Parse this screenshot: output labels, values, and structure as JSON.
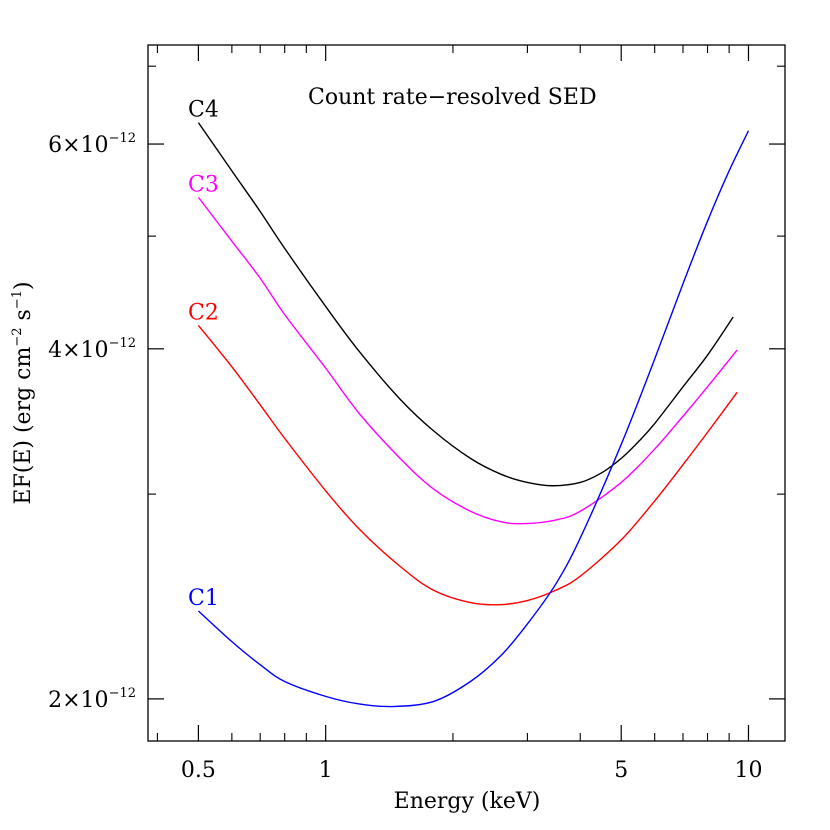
{
  "chart_data": {
    "type": "line",
    "title": "Count rate−resolved SED",
    "xlabel": "Energy (keV)",
    "ylabel": {
      "parts": [
        "EF(E) (erg cm",
        "−2",
        " s",
        "−1",
        ")"
      ]
    },
    "x_scale": "log",
    "y_scale": "log",
    "xlim": [
      0.38,
      12.2
    ],
    "ylim": [
      1.84e-12,
      7.3e-12
    ],
    "x_ticks": {
      "major": [
        {
          "value": 0.5,
          "label": "0.5"
        },
        {
          "value": 1,
          "label": "1"
        },
        {
          "value": 5,
          "label": "5"
        },
        {
          "value": 10,
          "label": "10"
        }
      ],
      "minor": [
        0.4,
        0.6,
        0.7,
        0.8,
        0.9,
        2,
        3,
        4,
        6,
        7,
        8,
        9
      ]
    },
    "y_ticks": {
      "major": [
        {
          "value": 2e-12,
          "mantissa": "2×10",
          "exponent": "−12"
        },
        {
          "value": 4e-12,
          "mantissa": "4×10",
          "exponent": "−12"
        },
        {
          "value": 6e-12,
          "mantissa": "6×10",
          "exponent": "−12"
        }
      ],
      "minor": [
        3e-12,
        5e-12,
        7e-12
      ]
    },
    "series": [
      {
        "name": "C4",
        "color": "#000000",
        "x": [
          0.5,
          0.6,
          0.7,
          0.8,
          1.0,
          1.2,
          1.5,
          1.8,
          2.2,
          2.6,
          3.0,
          3.44,
          4.0,
          4.5,
          5.0,
          5.5,
          6.0,
          7.0,
          8.0,
          9.2
        ],
        "y": [
          6.26e-12,
          5.69e-12,
          5.25e-12,
          4.88e-12,
          4.35e-12,
          3.98e-12,
          3.62e-12,
          3.4e-12,
          3.22e-12,
          3.12e-12,
          3.07e-12,
          3.05e-12,
          3.07e-12,
          3.13e-12,
          3.22e-12,
          3.33e-12,
          3.45e-12,
          3.71e-12,
          3.95e-12,
          4.26e-12
        ]
      },
      {
        "name": "C3",
        "color": "#ff00ff",
        "x": [
          0.5,
          0.6,
          0.7,
          0.8,
          1.0,
          1.2,
          1.5,
          1.8,
          2.2,
          2.6,
          2.97,
          3.5,
          4.0,
          5.0,
          6.0,
          7.0,
          8.0,
          9.4
        ],
        "y": [
          5.4e-12,
          4.95e-12,
          4.6e-12,
          4.28e-12,
          3.85e-12,
          3.52e-12,
          3.22e-12,
          3.03e-12,
          2.9e-12,
          2.84e-12,
          2.83e-12,
          2.85e-12,
          2.9e-12,
          3.07e-12,
          3.28e-12,
          3.5e-12,
          3.71e-12,
          3.99e-12
        ]
      },
      {
        "name": "C2",
        "color": "#ff0000",
        "x": [
          0.5,
          0.6,
          0.7,
          0.8,
          1.0,
          1.2,
          1.5,
          1.8,
          2.2,
          2.58,
          3.0,
          3.5,
          4.0,
          5.0,
          6.0,
          7.0,
          8.0,
          9.4
        ],
        "y": [
          4.19e-12,
          3.86e-12,
          3.58e-12,
          3.35e-12,
          3.02e-12,
          2.8e-12,
          2.6e-12,
          2.48e-12,
          2.42e-12,
          2.41e-12,
          2.43e-12,
          2.48e-12,
          2.55e-12,
          2.74e-12,
          2.96e-12,
          3.18e-12,
          3.39e-12,
          3.67e-12
        ]
      },
      {
        "name": "C1",
        "color": "#0000ff",
        "x": [
          0.5,
          0.6,
          0.7,
          0.8,
          1.0,
          1.2,
          1.44,
          1.8,
          2.2,
          2.6,
          3.0,
          3.5,
          4.0,
          5.0,
          6.0,
          7.0,
          8.0,
          9.0,
          10.0
        ],
        "y": [
          2.38e-12,
          2.24e-12,
          2.14e-12,
          2.07e-12,
          2.01e-12,
          1.98e-12,
          1.97e-12,
          1.99e-12,
          2.07e-12,
          2.18e-12,
          2.32e-12,
          2.51e-12,
          2.75e-12,
          3.31e-12,
          3.92e-12,
          4.55e-12,
          5.15e-12,
          5.69e-12,
          6.16e-12
        ]
      }
    ],
    "grid": false,
    "legend": "curve labels placed left of each curve start"
  }
}
